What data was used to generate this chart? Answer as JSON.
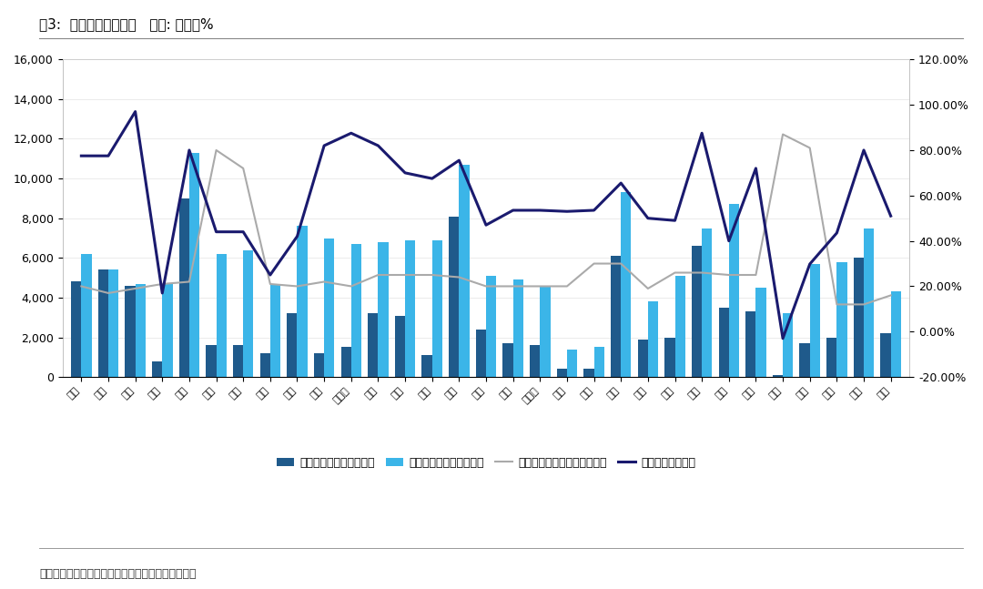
{
  "title": "图3:  各省财政收支概况   单位: 亿元、%",
  "footnote": "资料来源：各省国民经济发展公报、国海证券研究所",
  "categories": [
    "安徽",
    "北京",
    "福建",
    "甘肃",
    "广东",
    "广西",
    "贵州",
    "海南",
    "河北",
    "河南",
    "黑龙江",
    "湖北",
    "湖南",
    "吉林",
    "江苏",
    "江西",
    "辽宁",
    "内蒙古",
    "宁夏",
    "青海",
    "山东",
    "山西",
    "陕西",
    "上海",
    "四川",
    "天津",
    "西藏",
    "新疆",
    "云南",
    "浙江",
    "重庆"
  ],
  "revenue": [
    4800,
    5400,
    4600,
    800,
    9000,
    1600,
    1600,
    1200,
    3200,
    1200,
    1500,
    3200,
    3100,
    1100,
    8100,
    2400,
    1700,
    1600,
    400,
    400,
    6100,
    1900,
    2000,
    6600,
    3500,
    3300,
    100,
    1700,
    2000,
    6000,
    2200
  ],
  "expenditure": [
    6200,
    5400,
    4700,
    4700,
    11300,
    6200,
    6400,
    4700,
    7600,
    7000,
    6700,
    6800,
    6900,
    6900,
    10700,
    5100,
    4900,
    4600,
    1400,
    1500,
    9300,
    3800,
    5100,
    7500,
    8700,
    4500,
    3200,
    5700,
    5800,
    7500,
    4300
  ],
  "growth_rate": [
    0.2,
    0.17,
    0.19,
    0.21,
    0.22,
    0.8,
    0.72,
    0.21,
    0.2,
    0.22,
    0.2,
    0.25,
    0.25,
    0.25,
    0.24,
    0.2,
    0.2,
    0.2,
    0.2,
    0.3,
    0.3,
    0.19,
    0.26,
    0.26,
    0.25,
    0.25,
    0.87,
    0.81,
    0.12,
    0.12,
    0.16
  ],
  "balance_rate": [
    0.775,
    0.775,
    0.97,
    0.17,
    0.8,
    0.44,
    0.44,
    0.25,
    0.42,
    0.82,
    0.875,
    0.82,
    0.7,
    0.675,
    0.755,
    0.47,
    0.535,
    0.535,
    0.53,
    0.535,
    0.655,
    0.5,
    0.49,
    0.875,
    0.4,
    0.72,
    -0.03,
    0.298,
    0.435,
    0.8,
    0.51
  ],
  "bar_color_revenue": "#1F5A8B",
  "bar_color_expenditure": "#3BB5E8",
  "line_color_growth": "#AAAAAA",
  "line_color_balance": "#1A1A6E",
  "ylim_left": [
    0,
    16000
  ],
  "ylim_right": [
    -0.2,
    1.2
  ],
  "yticks_left": [
    0,
    2000,
    4000,
    6000,
    8000,
    10000,
    12000,
    14000,
    16000
  ],
  "yticks_right_vals": [
    -0.2,
    0.0,
    0.2,
    0.4,
    0.6,
    0.8,
    1.0,
    1.2
  ],
  "yticks_right_labels": [
    "-20.00%",
    "0.00%",
    "20.00%",
    "40.00%",
    "60.00%",
    "80.00%",
    "100.00%",
    "120.00%"
  ]
}
